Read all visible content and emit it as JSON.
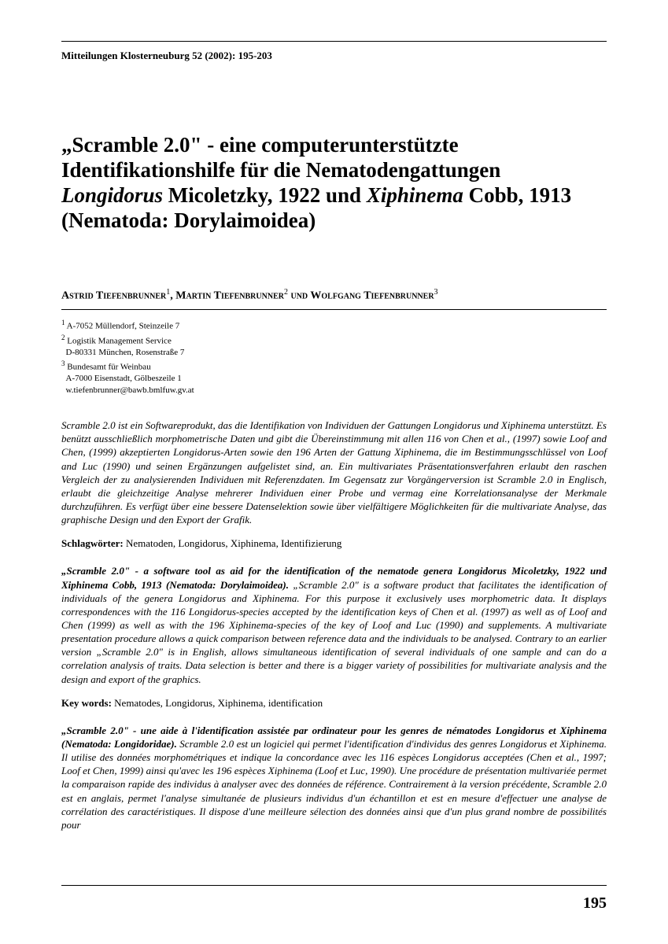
{
  "journal_line": "Mitteilungen Klosterneuburg 52 (2002): 195-203",
  "title_parts": {
    "p1": "„Scramble 2.0\" - eine computerunterstützte Identifikationshilfe für die Nematodengattungen ",
    "g1": "Longidorus",
    "p2": " Micoletzky, 1922 und ",
    "g2": "Xiphinema",
    "p3": " Cobb, 1913 (Nematoda: Dorylaimoidea)"
  },
  "authors": {
    "a1": "Astrid Tiefenbrunner",
    "s1": "1",
    "sep1": ", ",
    "a2": "Martin Tiefenbrunner",
    "s2": "2",
    "sep2": " und ",
    "a3": "Wolfgang Tiefenbrunner",
    "s3": "3"
  },
  "affiliations": {
    "l1": "A-7052 Müllendorf, Steinzeile 7",
    "l2": "Logistik Management Service",
    "l3": "D-80331 München, Rosenstraße 7",
    "l4": "Bundesamt für Weinbau",
    "l5": "A-7000 Eisenstadt, Gölbeszeile 1",
    "l6": "w.tiefenbrunner@bawb.bmlfuw.gv.at"
  },
  "abstract_de": "Scramble 2.0 ist ein Softwareprodukt, das die Identifikation von Individuen der Gattungen Longidorus und Xiphinema unterstützt. Es benützt ausschließlich morphometrische Daten und gibt die Übereinstimmung mit allen 116 von Chen et al., (1997) sowie Loof and Chen, (1999) akzeptierten Longidorus-Arten sowie den 196 Arten der Gattung Xiphinema, die im Bestimmungsschlüssel von Loof and Luc (1990) und seinen Ergänzungen aufgelistet sind, an. Ein multivariates Präsentationsverfahren erlaubt den raschen Vergleich der zu analysierenden Individuen mit Referenzdaten. Im Gegensatz zur Vorgängerversion ist Scramble 2.0 in Englisch, erlaubt die gleichzeitige Analyse mehrerer Individuen einer Probe und vermag eine Korrelationsanalyse der Merkmale durchzuführen. Es verfügt über eine bessere Datenselektion sowie über vielfältigere Möglichkeiten für die multivariate Analyse, das graphische Design und den Export der Grafik.",
  "schlag_de_label": "Schlagwörter: ",
  "schlag_de": "Nematoden, Longidorus, Xiphinema, Identifizierung",
  "abstract_en_title": "„Scramble 2.0\" - a software tool as aid for the identification of the nematode genera Longidorus Micoletzky, 1922 und Xiphinema Cobb, 1913 (Nematoda: Dorylaimoidea).",
  "abstract_en": " „Scramble 2.0\" is a software product that facilitates the identification of individuals of the genera Longidorus and Xiphinema. For this purpose it exclusively uses morphometric data. It displays correspondences with the 116 Longidorus-species accepted by the identification keys of Chen et al. (1997) as well as of Loof and Chen (1999) as well as with the 196 Xiphinema-species of the key of Loof and Luc (1990) and supplements. A multivariate presentation procedure allows a quick comparison between reference data and the individuals to be analysed. Contrary to an earlier version „Scramble 2.0\" is in English, allows simultaneous identification of several individuals of one sample and can do a correlation analysis of traits. Data selection is better and there is a bigger variety of possibilities for multivariate analysis and the design and export of the graphics.",
  "schlag_en_label": "Key words: ",
  "schlag_en": "Nematodes, Longidorus, Xiphinema, identification",
  "abstract_fr_title": "„Scramble 2.0\" - une aide à l'identification assistée par ordinateur pour les genres de nématodes Longidorus et Xiphinema (Nematoda: Longidoridae).",
  "abstract_fr": " Scramble 2.0 est un logiciel qui permet l'identification d'individus des genres Longidorus et Xiphinema. Il utilise des données morphométriques et indique la concordance avec les 116 espèces Longidorus acceptées (Chen et al., 1997; Loof et Chen, 1999) ainsi qu'avec les 196 espèces Xiphinema (Loof et Luc, 1990). Une procédure de présentation multivariée permet la comparaison rapide des individus à analyser avec des données de référence. Contrairement à la version précédente, Scramble 2.0 est en anglais, permet l'analyse simultanée de plusieurs individus d'un échantillon et est en mesure d'effectuer une analyse de corrélation des caractéristiques. Il dispose d'une meilleure sélection des données ainsi que d'un plus grand nombre de possibilités pour",
  "page_number": "195"
}
